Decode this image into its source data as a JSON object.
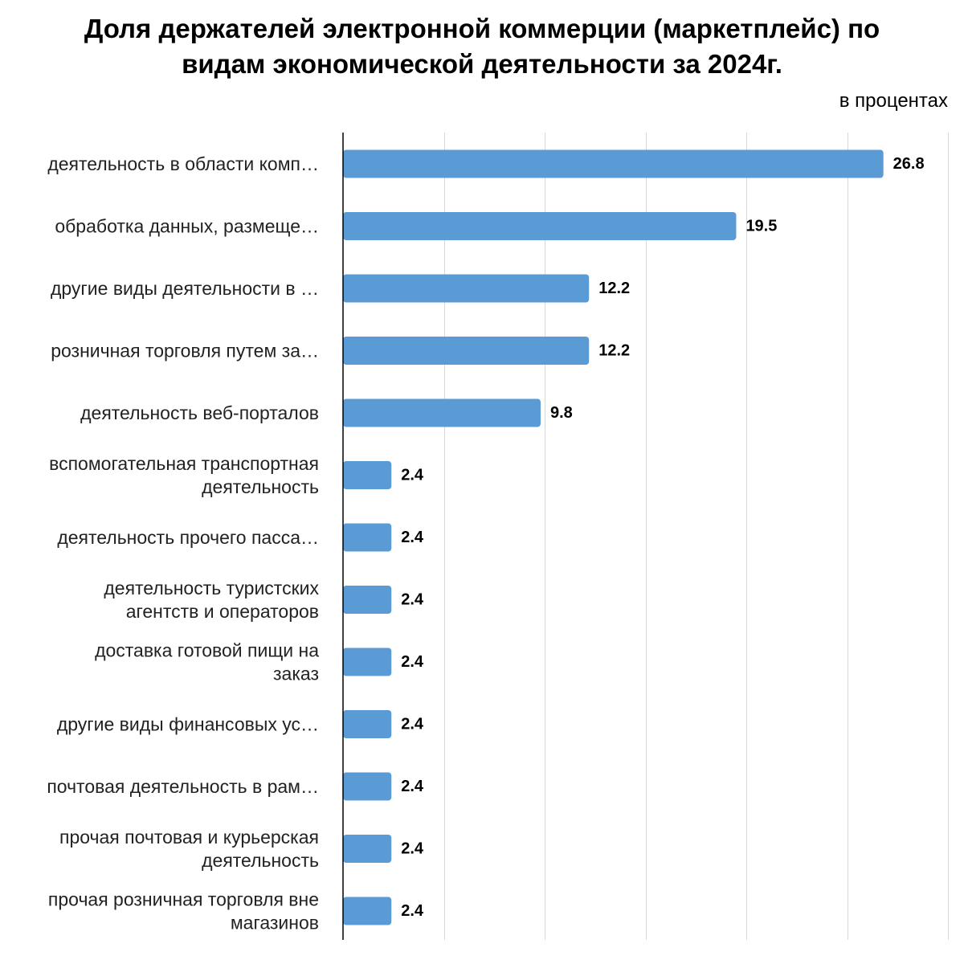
{
  "chart_data": {
    "type": "bar",
    "orientation": "horizontal",
    "title_lines": [
      "Доля держателей электронной коммерции (маркетплейс) по",
      "видам экономической деятельности за 2024г."
    ],
    "subtitle": "в процентах",
    "categories": [
      [
        "деятельность в области комп…"
      ],
      [
        "обработка данных, размеще…"
      ],
      [
        "другие виды деятельности в …"
      ],
      [
        "розничная торговля путем за…"
      ],
      [
        "деятельность веб-порталов"
      ],
      [
        "вспомогательная транспортная",
        "деятельность"
      ],
      [
        "деятельность прочего пасса…"
      ],
      [
        "деятельность туристских",
        "агентств и операторов"
      ],
      [
        "доставка готовой пищи на",
        "заказ"
      ],
      [
        "другие виды финансовых ус…"
      ],
      [
        "почтовая деятельность в рам…"
      ],
      [
        "прочая почтовая и курьерская",
        "деятельность"
      ],
      [
        "прочая розничная торговля вне",
        "магазинов"
      ]
    ],
    "values": [
      26.8,
      19.5,
      12.2,
      12.2,
      9.8,
      2.4,
      2.4,
      2.4,
      2.4,
      2.4,
      2.4,
      2.4,
      2.4
    ],
    "value_labels": [
      "26.8",
      "19.5",
      "12.2",
      "12.2",
      "9.8",
      "2.4",
      "2.4",
      "2.4",
      "2.4",
      "2.4",
      "2.4",
      "2.4",
      "2.4"
    ],
    "xlim": [
      0,
      30
    ],
    "x_grid_step": 5,
    "grid": true,
    "legend": "none",
    "bar_color": "#5b9bd5",
    "grid_color": "#d9d9d9",
    "axis_color": "#000000"
  }
}
